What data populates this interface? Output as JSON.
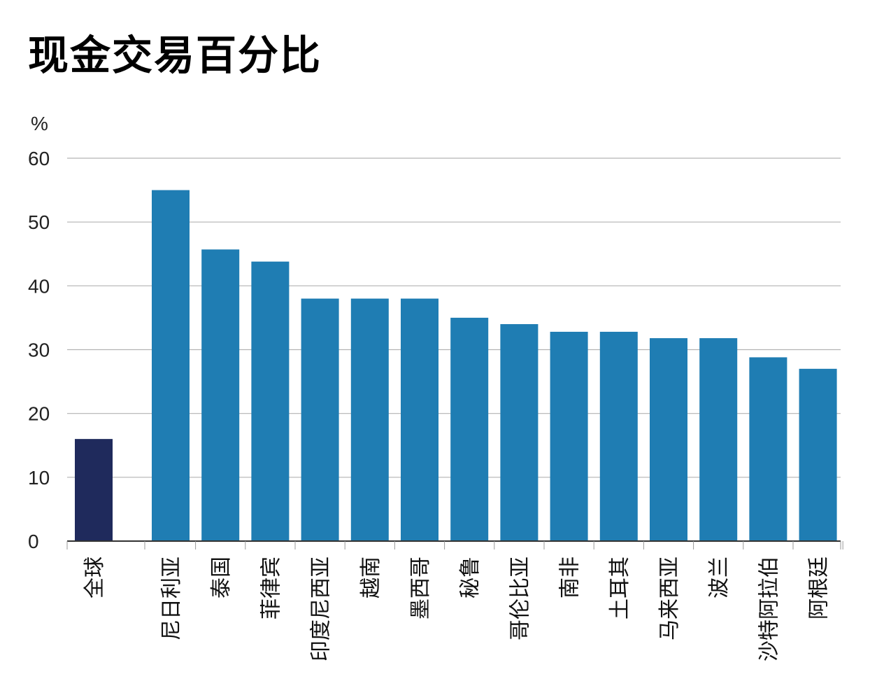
{
  "chart_data": {
    "type": "bar",
    "title": "现金交易百分比",
    "ylabel": "%",
    "xlabel": "",
    "ylim": [
      0,
      60
    ],
    "yticks": [
      0,
      10,
      20,
      30,
      40,
      50,
      60
    ],
    "grid": true,
    "categories": [
      "全球",
      "尼日利亚",
      "泰国",
      "菲律宾",
      "印度尼西亚",
      "越南",
      "墨西哥",
      "秘鲁",
      "哥伦比亚",
      "南非",
      "土耳其",
      "马来西亚",
      "波兰",
      "沙特阿拉伯",
      "阿根廷"
    ],
    "values": [
      16,
      55,
      45.7,
      43.8,
      38,
      38,
      38,
      35,
      34,
      32.8,
      32.8,
      31.8,
      31.8,
      28.8,
      27
    ],
    "colors": {
      "highlight": "#1f2a5c",
      "bar": "#1f7db3",
      "grid": "#b3b3b3",
      "axis": "#333333"
    }
  }
}
